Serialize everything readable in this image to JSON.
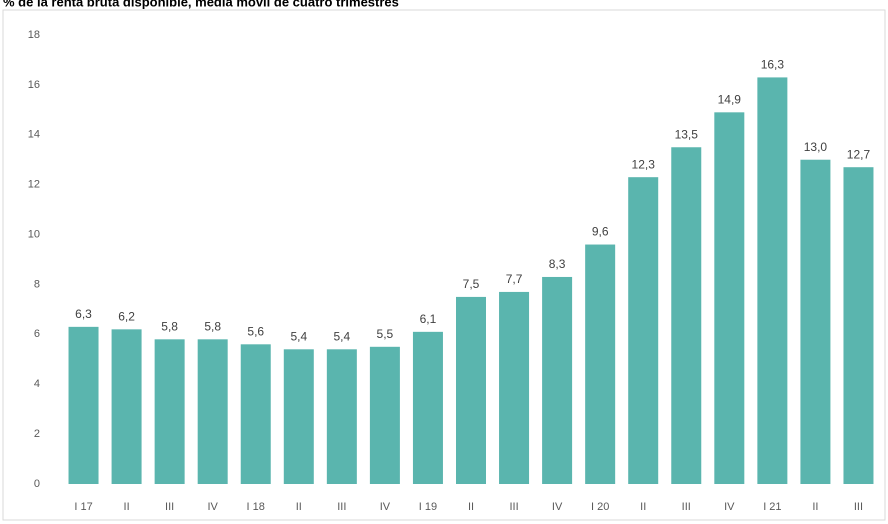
{
  "chart_data": {
    "type": "bar",
    "title": "% de la renta bruta disponible, media móvil de cuatro trimestres",
    "categories": [
      "I 17",
      "II",
      "III",
      "IV",
      "I 18",
      "II",
      "III",
      "IV",
      "I 19",
      "II",
      "III",
      "IV",
      "I 20",
      "II",
      "III",
      "IV",
      "I 21",
      "II",
      "III"
    ],
    "values": [
      6.3,
      6.2,
      5.8,
      5.8,
      5.6,
      5.4,
      5.4,
      5.5,
      6.1,
      7.5,
      7.7,
      8.3,
      9.6,
      12.3,
      13.5,
      14.9,
      16.3,
      13.0,
      12.7
    ],
    "value_labels": [
      "6,3",
      "6,2",
      "5,8",
      "5,8",
      "5,6",
      "5,4",
      "5,4",
      "5,5",
      "6,1",
      "7,5",
      "7,7",
      "8,3",
      "9,6",
      "12,3",
      "13,5",
      "14,9",
      "16,3",
      "13,0",
      "12,7"
    ],
    "color": "#5ab5ae",
    "ylim": [
      0,
      18
    ],
    "yticks": [
      0,
      2,
      4,
      6,
      8,
      10,
      12,
      14,
      16,
      18
    ],
    "grid": false
  }
}
